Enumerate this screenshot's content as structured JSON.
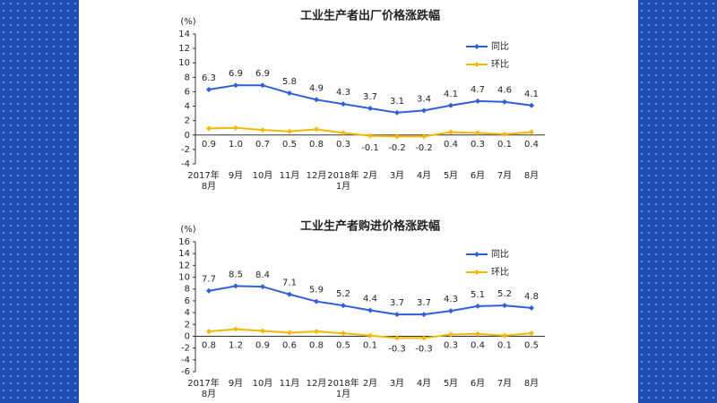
{
  "chart_data": [
    {
      "type": "line",
      "title": "工业生产者出厂价格涨跌幅",
      "y_unit": "(%)",
      "categories": [
        [
          "2017年",
          "8月"
        ],
        [
          "9月"
        ],
        [
          "10月"
        ],
        [
          "11月"
        ],
        [
          "12月"
        ],
        [
          "2018年",
          "1月"
        ],
        [
          "2月"
        ],
        [
          "3月"
        ],
        [
          "4月"
        ],
        [
          "5月"
        ],
        [
          "6月"
        ],
        [
          "7月"
        ],
        [
          "8月"
        ]
      ],
      "series": [
        {
          "name": "同比",
          "color": "#2f5fd8",
          "values": [
            6.3,
            6.9,
            6.9,
            5.8,
            4.9,
            4.3,
            3.7,
            3.1,
            3.4,
            4.1,
            4.7,
            4.6,
            4.1
          ],
          "value_labels": [
            "6.3",
            "6.9",
            "6.9",
            "5.8",
            "4.9",
            "4.3",
            "3.7",
            "3.1",
            "3.4",
            "4.1",
            "4.7",
            "4.6",
            "4.1"
          ]
        },
        {
          "name": "环比",
          "color": "#f5b800",
          "values": [
            0.9,
            1.0,
            0.7,
            0.5,
            0.8,
            0.3,
            -0.1,
            -0.2,
            -0.2,
            0.4,
            0.3,
            0.1,
            0.4
          ],
          "value_labels": [
            "0.9",
            "1.0",
            "0.7",
            "0.5",
            "0.8",
            "0.3",
            "-0.1",
            "-0.2",
            "-0.2",
            "0.4",
            "0.3",
            "0.1",
            "0.4"
          ]
        }
      ],
      "ylim": [
        -4,
        14
      ],
      "yticks": [
        -4,
        -2,
        0,
        2,
        4,
        6,
        8,
        10,
        12,
        14
      ]
    },
    {
      "type": "line",
      "title": "工业生产者购进价格涨跌幅",
      "y_unit": "(%)",
      "categories": [
        [
          "2017年",
          "8月"
        ],
        [
          "9月"
        ],
        [
          "10月"
        ],
        [
          "11月"
        ],
        [
          "12月"
        ],
        [
          "2018年",
          "1月"
        ],
        [
          "2月"
        ],
        [
          "3月"
        ],
        [
          "4月"
        ],
        [
          "5月"
        ],
        [
          "6月"
        ],
        [
          "7月"
        ],
        [
          "8月"
        ]
      ],
      "series": [
        {
          "name": "同比",
          "color": "#2f5fd8",
          "values": [
            7.7,
            8.5,
            8.4,
            7.1,
            5.9,
            5.2,
            4.4,
            3.7,
            3.7,
            4.3,
            5.1,
            5.2,
            4.8
          ],
          "value_labels": [
            "7.7",
            "8.5",
            "8.4",
            "7.1",
            "5.9",
            "5.2",
            "4.4",
            "3.7",
            "3.7",
            "4.3",
            "5.1",
            "5.2",
            "4.8"
          ]
        },
        {
          "name": "环比",
          "color": "#f5b800",
          "values": [
            0.8,
            1.2,
            0.9,
            0.6,
            0.8,
            0.5,
            0.1,
            -0.3,
            -0.3,
            0.3,
            0.4,
            0.1,
            0.5
          ],
          "value_labels": [
            "0.8",
            "1.2",
            "0.9",
            "0.6",
            "0.8",
            "0.5",
            "0.1",
            "-0.3",
            "-0.3",
            "0.3",
            "0.4",
            "0.1",
            "0.5"
          ]
        }
      ],
      "ylim": [
        -6,
        16
      ],
      "yticks": [
        -6,
        -4,
        -2,
        0,
        2,
        4,
        6,
        8,
        10,
        12,
        14,
        16
      ]
    }
  ]
}
